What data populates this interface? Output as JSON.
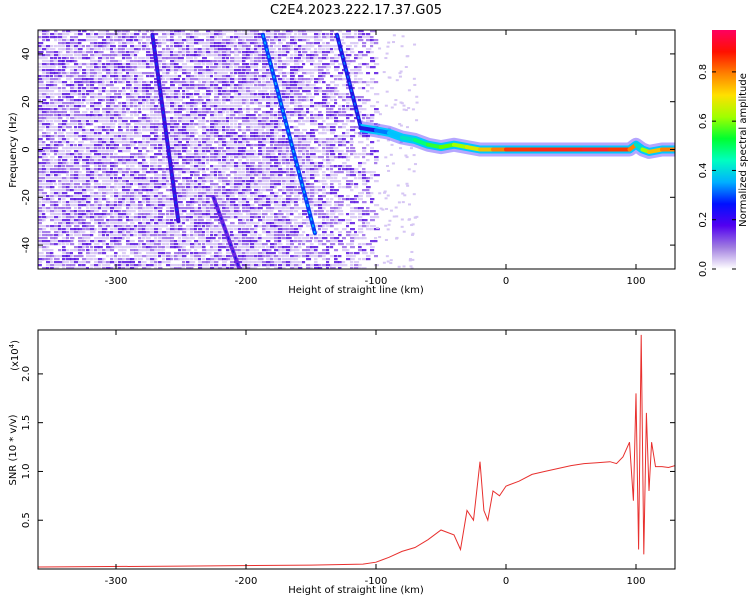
{
  "title": "C2E4.2023.222.17.37.G05",
  "colors": {
    "snr_line": "#e8302e",
    "spectrogram_trace": "#3a1ad6",
    "spectrogram_noise": "#7a35e0"
  },
  "colorbar": {
    "label": "Normalized spectral amplitude",
    "ticks": [
      "0.0",
      "0.2",
      "0.4",
      "0.6",
      "0.8"
    ],
    "tick_values": [
      0.0,
      0.2,
      0.4,
      0.6,
      0.8
    ],
    "range": [
      0,
      0.97
    ],
    "colormap": [
      "#ffffff",
      "#cdb7f0",
      "#7b2fe6",
      "#2b00d9",
      "#0046ff",
      "#00c8ff",
      "#00ff80",
      "#4dff00",
      "#c8ff00",
      "#ffb000",
      "#ff2a00",
      "#ff1a8a"
    ]
  },
  "chart_data": [
    {
      "type": "heatmap",
      "xlabel": "Height of straight line (km)",
      "ylabel": "Frequency (Hz)",
      "xlim": [
        -360,
        130
      ],
      "ylim": [
        -50,
        50
      ],
      "xticks": [
        -300,
        -200,
        -100,
        0,
        100
      ],
      "xtick_labels": [
        "-300",
        "-200",
        "-100",
        "0",
        "100"
      ],
      "yticks": [
        -40,
        -20,
        0,
        20,
        40
      ],
      "ytick_labels": [
        "-40",
        "-20",
        "0",
        "20",
        "40"
      ],
      "traces": [
        {
          "x": [
            -272,
            -252
          ],
          "y": [
            48,
            -30
          ],
          "amplitude": 0.15
        },
        {
          "x": [
            -187,
            -147
          ],
          "y": [
            48,
            -35
          ],
          "amplitude": 0.25
        },
        {
          "x": [
            -130,
            -112
          ],
          "y": [
            48,
            10
          ],
          "amplitude": 0.2
        },
        {
          "x": [
            -225,
            -205
          ],
          "y": [
            -20,
            -50
          ],
          "amplitude": 0.1
        }
      ],
      "tone": {
        "x": [
          -112,
          -100,
          -90,
          -80,
          -70,
          -60,
          -50,
          -40,
          -30,
          -20,
          -10,
          0,
          20,
          40,
          60,
          80,
          95,
          100,
          105,
          110,
          120,
          130
        ],
        "y": [
          9,
          8,
          7,
          5,
          4,
          2,
          1,
          2,
          1,
          0,
          0,
          0,
          0,
          0,
          0,
          0,
          0,
          2,
          0,
          -1,
          0,
          0
        ],
        "amplitude": [
          0.3,
          0.4,
          0.45,
          0.5,
          0.55,
          0.6,
          0.65,
          0.7,
          0.75,
          0.8,
          0.85,
          0.9,
          0.92,
          0.92,
          0.93,
          0.9,
          0.85,
          0.5,
          0.7,
          0.8,
          0.85,
          0.8
        ]
      },
      "noise_extent_x": [
        -360,
        -100
      ]
    },
    {
      "type": "line",
      "xlabel": "Height of straight line (km)",
      "ylabel": "SNR (10 * v/v)",
      "scale_label": "(x10",
      "scale_exponent": "4",
      "scale_suffix": ")",
      "xlim": [
        -360,
        130
      ],
      "ylim": [
        0,
        2.45
      ],
      "xticks": [
        -300,
        -200,
        -100,
        0,
        100
      ],
      "xtick_labels": [
        "-300",
        "-200",
        "-100",
        "0",
        "100"
      ],
      "yticks": [
        0.5,
        1.0,
        1.5,
        2.0
      ],
      "ytick_labels": [
        "0.5",
        "1.0",
        "1.5",
        "2.0"
      ],
      "series": [
        {
          "x": [
            -360,
            -250,
            -150,
            -110,
            -100,
            -90,
            -80,
            -70,
            -60,
            -50,
            -40,
            -35,
            -30,
            -25,
            -20,
            -17,
            -14,
            -10,
            -5,
            0,
            10,
            20,
            30,
            40,
            50,
            60,
            70,
            80,
            85,
            90,
            95,
            98,
            100,
            102,
            104,
            106,
            108,
            110,
            112,
            115,
            120,
            125,
            130
          ],
          "y": [
            0.02,
            0.03,
            0.04,
            0.05,
            0.07,
            0.12,
            0.18,
            0.22,
            0.3,
            0.4,
            0.35,
            0.2,
            0.6,
            0.5,
            1.1,
            0.6,
            0.5,
            0.8,
            0.75,
            0.85,
            0.9,
            0.97,
            1.0,
            1.03,
            1.06,
            1.08,
            1.09,
            1.1,
            1.08,
            1.15,
            1.3,
            0.7,
            1.8,
            0.2,
            2.4,
            0.15,
            1.6,
            0.8,
            1.3,
            1.05,
            1.05,
            1.04,
            1.06
          ]
        }
      ]
    }
  ]
}
